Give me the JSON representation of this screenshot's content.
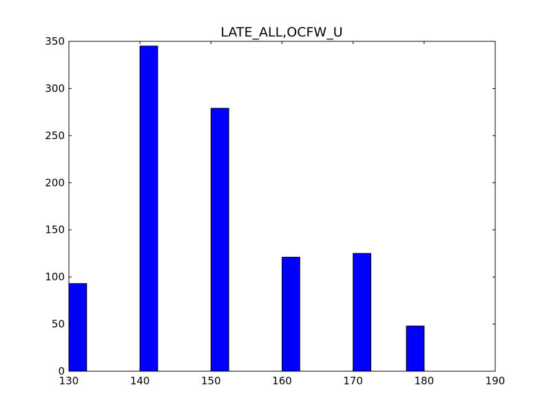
{
  "chart_data": {
    "type": "bar",
    "title": "LATE_ALL,OCFW_U",
    "xlabel": "",
    "ylabel": "",
    "xlim": [
      130,
      190
    ],
    "ylim": [
      0,
      350
    ],
    "xticks": [
      130,
      140,
      150,
      160,
      170,
      180,
      190
    ],
    "yticks": [
      0,
      50,
      100,
      150,
      200,
      250,
      300,
      350
    ],
    "bar_width": 2.5,
    "bars": [
      {
        "x": 130.0,
        "value": 93
      },
      {
        "x": 140.0,
        "value": 345
      },
      {
        "x": 150.0,
        "value": 279
      },
      {
        "x": 160.0,
        "value": 121
      },
      {
        "x": 170.0,
        "value": 125
      },
      {
        "x": 177.5,
        "value": 48
      }
    ],
    "grid": false,
    "bar_color": "#0000ff",
    "edge_color": "#000000"
  }
}
